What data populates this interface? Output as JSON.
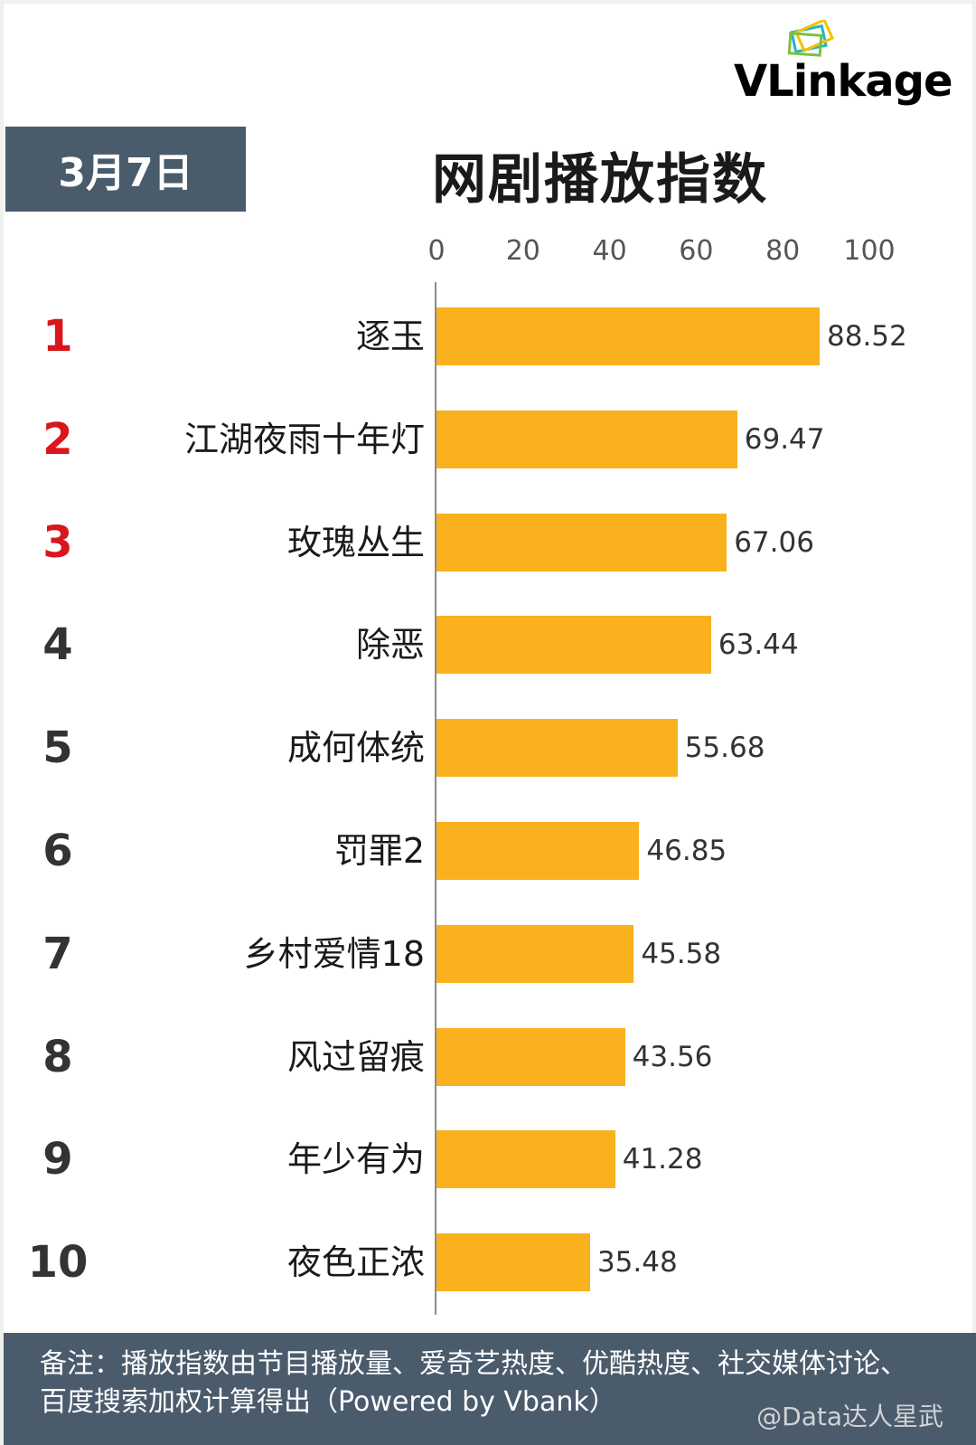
{
  "brand": {
    "logo_text_main": "VLinkage"
  },
  "header": {
    "date": "3月7日",
    "title": "网剧播放指数"
  },
  "colors": {
    "bar": "#f9b11d",
    "header_box": "#4a5b6c",
    "top_rank": "#d9161c",
    "rank": "#333333"
  },
  "chart_data": {
    "type": "bar",
    "orientation": "horizontal",
    "title": "网剧播放指数",
    "xlim": [
      0,
      100
    ],
    "ticks": [
      "0",
      "20",
      "40",
      "60",
      "80",
      "100"
    ],
    "ranks": [
      "1",
      "2",
      "3",
      "4",
      "5",
      "6",
      "7",
      "8",
      "9",
      "10"
    ],
    "categories": [
      "逐玉",
      "江湖夜雨十年灯",
      "玫瑰丛生",
      "除恶",
      "成何体统",
      "罚罪2",
      "乡村爱情18",
      "风过留痕",
      "年少有为",
      "夜色正浓"
    ],
    "values": [
      88.52,
      69.47,
      67.06,
      63.44,
      55.68,
      46.85,
      45.58,
      43.56,
      41.28,
      35.48
    ],
    "value_labels": [
      "88.52",
      "69.47",
      "67.06",
      "63.44",
      "55.68",
      "46.85",
      "45.58",
      "43.56",
      "41.28",
      "35.48"
    ]
  },
  "footer": {
    "note": "备注：播放指数由节目播放量、爱奇艺热度、优酷热度、社交媒体讨论、百度搜索加权计算得出（Powered by Vbank）",
    "watermark": "@Data达人星武"
  }
}
